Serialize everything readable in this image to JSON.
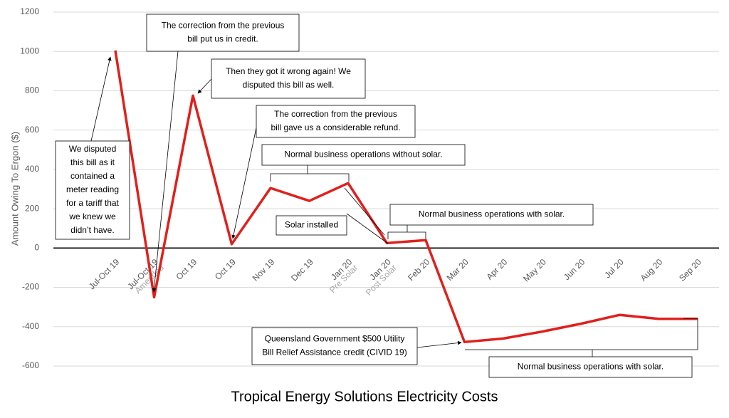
{
  "chart_data": {
    "type": "line",
    "title": "Tropical Energy Solutions Electricity Costs",
    "y_label": "Amount Owing To Ergon ($)",
    "categories": [
      "Jul-Oct 19",
      "Jul-Oct 19",
      "Oct 19",
      "Oct 19",
      "Nov 19",
      "Dec 19",
      "Jan 20",
      "Jan 20",
      "Feb 20",
      "Mar 20",
      "Apr 20",
      "May 20",
      "Jun 20",
      "Jul 20",
      "Aug 20",
      "Sep 20"
    ],
    "category_notes": [
      null,
      "Amended",
      null,
      null,
      null,
      null,
      "Pre Solar",
      "Post Solar",
      null,
      null,
      null,
      null,
      null,
      null,
      null,
      null
    ],
    "series": [
      {
        "name": "Amount Owing",
        "color": "#e0201c",
        "values": [
          1005,
          -250,
          775,
          20,
          305,
          240,
          330,
          25,
          40,
          -478,
          -460,
          -425,
          -385,
          -340,
          -360,
          -360
        ]
      }
    ],
    "ylim": [
      -600,
      1200
    ],
    "yticks": [
      -600,
      -400,
      -200,
      0,
      200,
      400,
      600,
      800,
      1000,
      1200
    ],
    "grid": true,
    "annotations": [
      {
        "lines": [
          "The correction from the previous",
          "bill put us in credit."
        ]
      },
      {
        "lines": [
          "Then they got it wrong again!  We",
          "disputed this bill as well."
        ]
      },
      {
        "lines": [
          "The correction from the previous",
          "bill gave us a considerable refund."
        ]
      },
      {
        "lines": [
          "We disputed",
          "this bill as it",
          "contained a",
          "meter reading",
          "for a tariff that",
          "we knew we",
          "didn’t have."
        ]
      },
      {
        "lines": [
          "Normal business operations without solar."
        ]
      },
      {
        "lines": [
          "Solar installed"
        ]
      },
      {
        "lines": [
          "Normal business operations with solar."
        ]
      },
      {
        "lines": [
          "Queensland Government $500 Utility",
          "Bill Relief Assistance credit (CIVID 19)"
        ]
      },
      {
        "lines": [
          "Normal business operations with solar."
        ]
      }
    ]
  }
}
